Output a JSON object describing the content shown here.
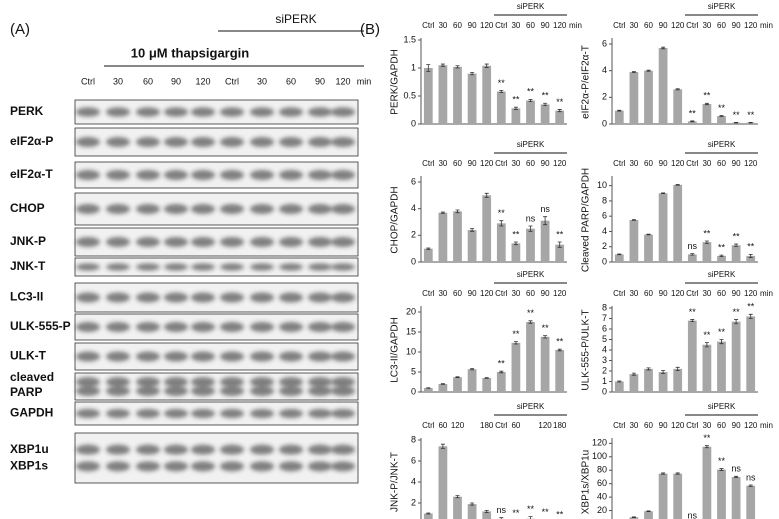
{
  "panel_a": {
    "label": "(A)",
    "group_label": "siPERK",
    "treatment": "10 μM thapsigargin",
    "lanes": [
      "Ctrl",
      "30",
      "60",
      "90",
      "120",
      "Ctrl",
      "30",
      "60",
      "90",
      "120"
    ],
    "unit": "min",
    "rows": [
      {
        "labels": [
          "PERK"
        ]
      },
      {
        "labels": [
          "eIF2α-P"
        ]
      },
      {
        "labels": [
          "eIF2α-T"
        ]
      },
      {
        "labels": [
          "CHOP"
        ]
      },
      {
        "labels": [
          "JNK-P"
        ]
      },
      {
        "labels": [
          "JNK-T"
        ]
      },
      {
        "labels": [
          "LC3-II"
        ]
      },
      {
        "labels": [
          "ULK-555-P"
        ]
      },
      {
        "labels": [
          "ULK-T"
        ]
      },
      {
        "labels": [
          "cleaved",
          "PARP"
        ]
      },
      {
        "labels": [
          "GAPDH"
        ]
      },
      {
        "labels": [
          "XBP1u",
          "XBP1s"
        ]
      }
    ]
  },
  "panel_b": {
    "label": "(B)"
  },
  "chart_data": [
    {
      "type": "bar",
      "ylabel": "PERK/GAPDH",
      "group_label": "siPERK",
      "unit": "min",
      "color": "#a6a6a6",
      "categories": [
        "Ctrl",
        "30",
        "60",
        "90",
        "120",
        "Ctrl",
        "30",
        "60",
        "90",
        "120"
      ],
      "values": [
        1.0,
        1.05,
        1.02,
        0.9,
        1.04,
        0.58,
        0.28,
        0.42,
        0.35,
        0.24
      ],
      "errors": [
        0.06,
        0.02,
        0.02,
        0.02,
        0.03,
        0.02,
        0.02,
        0.02,
        0.02,
        0.02
      ],
      "annotations": [
        null,
        null,
        null,
        null,
        null,
        "**",
        "**",
        "**",
        "**",
        "**"
      ],
      "ylim": [
        0,
        1.5
      ],
      "yticks": [
        0,
        0.5,
        1,
        1.5
      ]
    },
    {
      "type": "bar",
      "ylabel": "eIF2α-P/eIF2α-T",
      "group_label": "siPERK",
      "unit": "min",
      "color": "#a6a6a6",
      "categories": [
        "Ctrl",
        "30",
        "60",
        "90",
        "120",
        "Ctrl",
        "30",
        "60",
        "90",
        "120"
      ],
      "values": [
        1.0,
        3.9,
        4.0,
        5.7,
        2.6,
        0.2,
        1.5,
        0.6,
        0.1,
        0.1
      ],
      "errors": [
        0.03,
        0.04,
        0.04,
        0.06,
        0.04,
        0.03,
        0.05,
        0.04,
        0.02,
        0.02
      ],
      "annotations": [
        null,
        null,
        null,
        null,
        null,
        "**",
        "**",
        "**",
        "**",
        "**"
      ],
      "ylim": [
        0,
        6.3
      ],
      "yticks": [
        0,
        2,
        4,
        6
      ]
    },
    {
      "type": "bar",
      "ylabel": "CHOP/GAPDH",
      "group_label": "siPERK",
      "color": "#a6a6a6",
      "categories": [
        "Ctrl",
        "30",
        "60",
        "90",
        "120",
        "Ctrl",
        "30",
        "60",
        "90",
        "120"
      ],
      "values": [
        1.0,
        3.7,
        3.8,
        2.4,
        5.0,
        2.9,
        1.4,
        2.5,
        3.1,
        1.3
      ],
      "errors": [
        0.05,
        0.05,
        0.1,
        0.1,
        0.15,
        0.2,
        0.1,
        0.2,
        0.3,
        0.2
      ],
      "annotations": [
        null,
        null,
        null,
        null,
        null,
        "**",
        "**",
        "ns",
        "ns",
        "**"
      ],
      "ylim": [
        0,
        6.3
      ],
      "yticks": [
        0,
        2,
        4,
        6
      ]
    },
    {
      "type": "bar",
      "ylabel": "Cleaved PARP/GAPDH",
      "group_label": "siPERK",
      "color": "#a6a6a6",
      "categories": [
        "Ctrl",
        "30",
        "60",
        "90",
        "120",
        "Ctrl",
        "30",
        "60",
        "90",
        "120"
      ],
      "values": [
        1.0,
        5.5,
        3.6,
        9.0,
        10.1,
        1.0,
        2.6,
        0.8,
        2.2,
        0.8
      ],
      "errors": [
        0.05,
        0.05,
        0.05,
        0.05,
        0.05,
        0.1,
        0.15,
        0.1,
        0.15,
        0.2
      ],
      "annotations": [
        null,
        null,
        null,
        null,
        null,
        "ns",
        "**",
        "**",
        "**",
        "**"
      ],
      "ylim": [
        0,
        11
      ],
      "yticks": [
        0,
        2,
        4,
        6,
        8,
        10
      ]
    },
    {
      "type": "bar",
      "ylabel": "LC3-II/GAPDH",
      "group_label": "siPERK",
      "color": "#a6a6a6",
      "categories": [
        "Ctrl",
        "30",
        "60",
        "90",
        "120",
        "Ctrl",
        "30",
        "60",
        "90",
        "120"
      ],
      "values": [
        1.0,
        2.0,
        3.7,
        5.7,
        3.5,
        5.0,
        12.3,
        17.5,
        13.8,
        10.5
      ],
      "errors": [
        0.05,
        0.1,
        0.1,
        0.15,
        0.1,
        0.2,
        0.3,
        0.3,
        0.3,
        0.2
      ],
      "annotations": [
        null,
        null,
        null,
        null,
        null,
        "**",
        "**",
        "**",
        "**",
        "**"
      ],
      "ylim": [
        0,
        21
      ],
      "yticks": [
        0,
        5,
        10,
        15,
        20
      ]
    },
    {
      "type": "bar",
      "ylabel": "ULK-555-P/ULK-T",
      "group_label": "siPERK",
      "unit": "min",
      "color": "#a6a6a6",
      "categories": [
        "Ctrl",
        "30",
        "60",
        "90",
        "120",
        "Ctrl",
        "30",
        "60",
        "90",
        "120"
      ],
      "values": [
        1.0,
        1.7,
        2.2,
        1.9,
        2.2,
        6.8,
        4.5,
        4.8,
        6.7,
        7.2
      ],
      "errors": [
        0.05,
        0.1,
        0.1,
        0.15,
        0.15,
        0.1,
        0.2,
        0.2,
        0.2,
        0.2
      ],
      "annotations": [
        null,
        null,
        null,
        null,
        null,
        "**",
        "**",
        "**",
        "**",
        "**"
      ],
      "ylim": [
        0,
        8
      ],
      "yticks": [
        0,
        1,
        2,
        3,
        4,
        5,
        6,
        7,
        8
      ]
    },
    {
      "type": "bar",
      "ylabel": "JNK-P/JNK-T",
      "group_label": "siPERK",
      "color": "#a6a6a6",
      "categories": [
        "Ctrl",
        "60",
        "120",
        null,
        "180",
        "Ctrl",
        "60",
        null,
        "120",
        "180"
      ],
      "values": [
        1.0,
        7.4,
        2.6,
        1.9,
        1.2,
        0.4,
        0.2,
        0.5,
        0.3,
        0.1
      ],
      "errors": [
        0.05,
        0.2,
        0.1,
        0.1,
        0.1,
        0.2,
        0.1,
        0.2,
        0.1,
        0.1
      ],
      "annotations": [
        null,
        null,
        null,
        null,
        null,
        "ns",
        "**",
        "**",
        "**",
        "**"
      ],
      "ylim": [
        0,
        8
      ],
      "yticks": [
        0,
        2,
        4,
        6,
        8
      ]
    },
    {
      "type": "bar",
      "ylabel": "XBP1s/XBP1u",
      "group_label": "siPERK",
      "unit": "min",
      "color": "#a6a6a6",
      "categories": [
        "Ctrl",
        "30",
        "60",
        "90",
        "120",
        "Ctrl",
        "30",
        "60",
        "90",
        "120"
      ],
      "values": [
        1,
        10,
        19,
        75,
        75,
        1,
        115,
        81,
        70,
        57
      ],
      "errors": [
        0.5,
        0.5,
        0.5,
        1,
        1,
        0.5,
        1.5,
        1.5,
        1,
        1
      ],
      "annotations": [
        null,
        null,
        null,
        null,
        null,
        "ns",
        "**",
        "**",
        "ns",
        "ns"
      ],
      "ylim": [
        0,
        125
      ],
      "yticks": [
        0,
        20,
        40,
        60,
        80,
        100,
        120
      ]
    }
  ]
}
